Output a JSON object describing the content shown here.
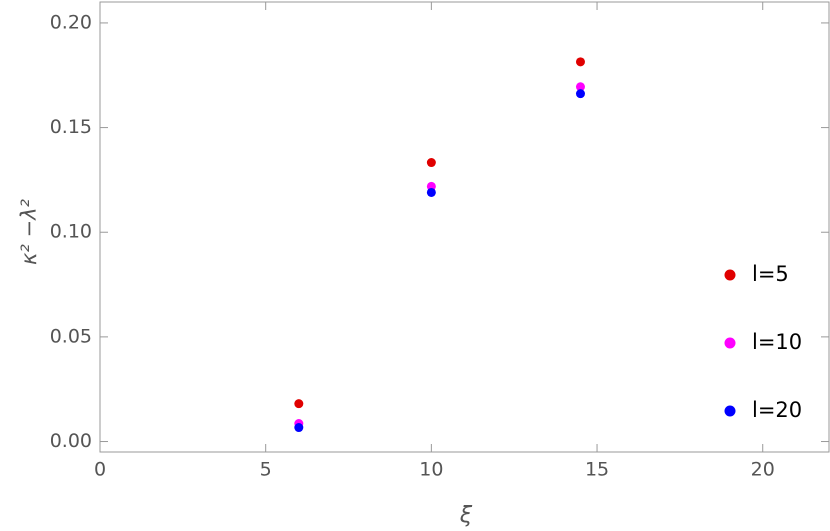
{
  "chart_data": {
    "type": "scatter",
    "x_label": "ξ",
    "y_label": "κ² −λ²",
    "xlim": [
      0,
      22
    ],
    "ylim": [
      -0.005,
      0.21
    ],
    "xticks": [
      0,
      5,
      10,
      15,
      20
    ],
    "yticks": [
      {
        "value": 0,
        "label": "0.00"
      },
      {
        "value": 0.05,
        "label": "0.05"
      },
      {
        "value": 0.1,
        "label": "0.10"
      },
      {
        "value": 0.15,
        "label": "0.15"
      },
      {
        "value": 0.2,
        "label": "0.20"
      }
    ],
    "series": [
      {
        "name": "l=5",
        "color": "#e00000",
        "x": [
          6,
          10,
          14.5
        ],
        "values": [
          0.0181,
          0.1333,
          0.1814
        ]
      },
      {
        "name": "l=10",
        "color": "#ff00ff",
        "x": [
          6,
          10,
          14.5
        ],
        "values": [
          0.0086,
          0.1219,
          0.1695
        ]
      },
      {
        "name": "l=20",
        "color": "#0000ff",
        "x": [
          6,
          10,
          14.5
        ],
        "values": [
          0.0067,
          0.119,
          0.1662
        ]
      }
    ]
  }
}
